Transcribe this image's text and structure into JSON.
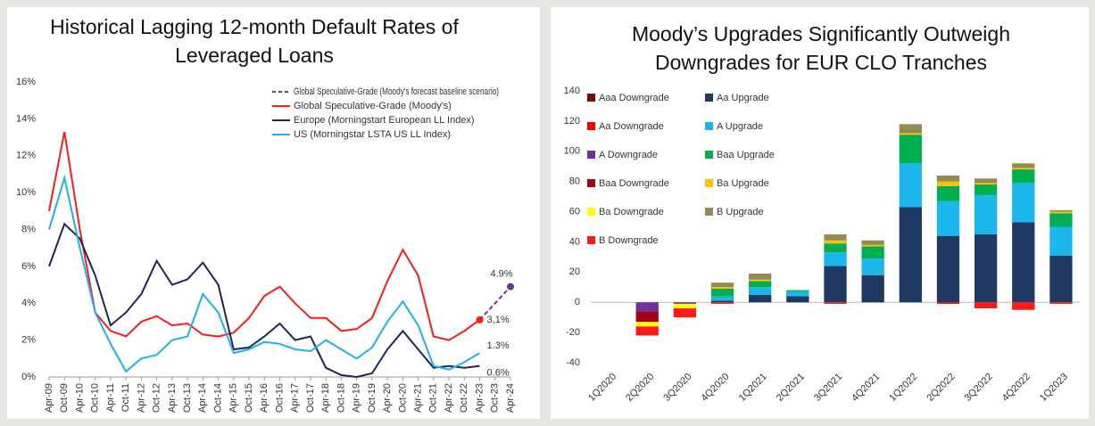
{
  "chart_data": [
    {
      "type": "line",
      "title": "Historical Lagging 12-month Default Rates of Leveraged Loans",
      "x": [
        "Apr-09",
        "Oct-09",
        "Apr-10",
        "Oct-10",
        "Apr-11",
        "Oct-11",
        "Apr-12",
        "Oct-12",
        "Apr-13",
        "Oct-13",
        "Apr-14",
        "Oct-14",
        "Apr-15",
        "Oct-15",
        "Apr-16",
        "Oct-16",
        "Apr-17",
        "Oct-17",
        "Apr-18",
        "Oct-18",
        "Apr-19",
        "Oct-19",
        "Apr-20",
        "Oct-20",
        "Apr-21",
        "Oct-21",
        "Apr-22",
        "Oct-22",
        "Apr-23",
        "Oct-23",
        "Apr-24"
      ],
      "ylim": [
        0,
        16
      ],
      "yticks": [
        {
          "value": 0,
          "label": "0%"
        },
        {
          "value": 2,
          "label": "2%"
        },
        {
          "value": 4,
          "label": "4%"
        },
        {
          "value": 6,
          "label": "6%"
        },
        {
          "value": 8,
          "label": "8%"
        },
        {
          "value": 10,
          "label": "10%"
        },
        {
          "value": 12,
          "label": "12%"
        },
        {
          "value": 14,
          "label": "14%"
        },
        {
          "value": 16,
          "label": "16%"
        }
      ],
      "grid": false,
      "legend": "upper right",
      "series": [
        {
          "name": "Global Speculative-Grade (Moody's forecast baseline scenario)",
          "color": "#7030a0",
          "dashed": true,
          "end_marker": true,
          "values": [
            null,
            null,
            null,
            null,
            null,
            null,
            null,
            null,
            null,
            null,
            null,
            null,
            null,
            null,
            null,
            null,
            null,
            null,
            null,
            null,
            null,
            null,
            null,
            null,
            null,
            null,
            null,
            null,
            3.1,
            4.0,
            4.9
          ],
          "value_labels": [
            null,
            null,
            null,
            null,
            null,
            null,
            null,
            null,
            null,
            null,
            null,
            null,
            null,
            null,
            null,
            null,
            null,
            null,
            null,
            null,
            null,
            null,
            null,
            null,
            null,
            null,
            null,
            null,
            null,
            null,
            "4.9%"
          ]
        },
        {
          "name": "Global Speculative-Grade (Moody's)",
          "color": "#ff1a1a",
          "dashed": false,
          "end_marker": true,
          "values": [
            9.0,
            13.3,
            8.0,
            3.5,
            2.5,
            2.2,
            3.0,
            3.3,
            2.8,
            2.9,
            2.3,
            2.2,
            2.4,
            3.2,
            4.4,
            4.9,
            4.0,
            3.2,
            3.2,
            2.5,
            2.6,
            3.2,
            5.2,
            6.9,
            5.5,
            2.2,
            2.0,
            2.5,
            3.1,
            null,
            null
          ],
          "value_labels": [
            null,
            null,
            null,
            null,
            null,
            null,
            null,
            null,
            null,
            null,
            null,
            null,
            null,
            null,
            null,
            null,
            null,
            null,
            null,
            null,
            null,
            null,
            null,
            null,
            null,
            null,
            null,
            null,
            "3,1%",
            null,
            null
          ]
        },
        {
          "name": "Europe (Morningstart European LL Index)",
          "color": "#1c2757",
          "dashed": false,
          "end_marker": false,
          "values": [
            6.0,
            8.3,
            7.5,
            5.5,
            2.8,
            3.5,
            4.5,
            6.3,
            5.0,
            5.3,
            6.2,
            5.0,
            1.5,
            1.6,
            2.2,
            2.9,
            2.0,
            2.2,
            0.5,
            0.1,
            0.0,
            0.2,
            1.5,
            2.5,
            1.5,
            0.5,
            0.6,
            0.5,
            0.6,
            null,
            null
          ],
          "value_labels": [
            null,
            null,
            null,
            null,
            null,
            null,
            null,
            null,
            null,
            null,
            null,
            null,
            null,
            null,
            null,
            null,
            null,
            null,
            null,
            null,
            null,
            null,
            null,
            null,
            null,
            null,
            null,
            null,
            "0.6%",
            null,
            null
          ]
        },
        {
          "name": "US (Morningstar LSTA US LL Index)",
          "color": "#1fb2e8",
          "dashed": false,
          "end_marker": false,
          "values": [
            8.0,
            10.8,
            7.0,
            3.5,
            1.8,
            0.3,
            1.0,
            1.2,
            2.0,
            2.2,
            4.5,
            3.5,
            1.3,
            1.5,
            1.9,
            1.8,
            1.5,
            1.4,
            2.0,
            1.5,
            1.0,
            1.6,
            3.0,
            4.1,
            2.8,
            0.6,
            0.4,
            0.8,
            1.3,
            null,
            null
          ],
          "value_labels": [
            null,
            null,
            null,
            null,
            null,
            null,
            null,
            null,
            null,
            null,
            null,
            null,
            null,
            null,
            null,
            null,
            null,
            null,
            null,
            null,
            null,
            null,
            null,
            null,
            null,
            null,
            null,
            null,
            "1.3%",
            null,
            null
          ]
        }
      ]
    },
    {
      "type": "bar",
      "stacked": true,
      "title": "Moody’s Upgrades Significantly Outweigh Downgrades for EUR CLO Tranches",
      "categories": [
        "1Q2020",
        "2Q2020",
        "3Q2020",
        "4Q2020",
        "1Q2021",
        "2Q2021",
        "3Q2021",
        "4Q2021",
        "1Q2022",
        "2Q2022",
        "3Q2022",
        "4Q2022",
        "1Q2023"
      ],
      "ylim": [
        -40,
        140
      ],
      "yticks": [
        -40,
        -20,
        0,
        20,
        40,
        60,
        80,
        100,
        120,
        140
      ],
      "grid": false,
      "legend": "upper left",
      "series": [
        {
          "name": "Aaa Downgrade",
          "color": "#7a0a0a",
          "values": [
            0,
            0,
            0,
            0,
            0,
            0,
            0,
            0,
            0,
            0,
            0,
            0,
            0
          ]
        },
        {
          "name": "Aa Upgrade",
          "color": "#203864",
          "values": [
            0,
            0,
            0,
            1,
            5,
            4,
            24,
            18,
            63,
            44,
            45,
            53,
            31
          ]
        },
        {
          "name": "Aa Downgrade",
          "color": "#ff0000",
          "values": [
            0,
            0,
            0,
            0,
            0,
            0,
            0,
            0,
            0,
            -1,
            0,
            0,
            0
          ]
        },
        {
          "name": "A Upgrade",
          "color": "#1ab6ec",
          "values": [
            0,
            0,
            0,
            3,
            5,
            3,
            9,
            11,
            29,
            23,
            26,
            26,
            19
          ]
        },
        {
          "name": "A Downgrade",
          "color": "#7030a0",
          "values": [
            0,
            -6,
            -1,
            0,
            0,
            0,
            0,
            0,
            0,
            0,
            0,
            0,
            0
          ]
        },
        {
          "name": "Baa Upgrade",
          "color": "#00b050",
          "values": [
            0,
            0,
            0,
            5,
            4,
            1,
            6,
            8,
            19,
            10,
            7,
            9,
            9
          ]
        },
        {
          "name": "Baa Downgrade",
          "color": "#a00018",
          "values": [
            0,
            -7,
            0,
            0,
            0,
            0,
            0,
            0,
            0,
            0,
            0,
            0,
            0
          ]
        },
        {
          "name": "Ba Upgrade",
          "color": "#ffc000",
          "values": [
            0,
            0,
            0,
            1,
            1,
            0,
            2,
            1,
            1,
            3,
            1,
            1,
            1
          ]
        },
        {
          "name": "Ba Downgrade",
          "color": "#ffff00",
          "values": [
            0,
            -3,
            -3,
            0,
            0,
            0,
            0,
            0,
            0,
            0,
            0,
            0,
            0
          ]
        },
        {
          "name": "B Upgrade",
          "color": "#948a54",
          "values": [
            0,
            0,
            0,
            3,
            4,
            0,
            4,
            3,
            6,
            4,
            3,
            3,
            1
          ]
        },
        {
          "name": "B Downgrade",
          "color": "#ff1a1a",
          "values": [
            0,
            -6,
            -6,
            -1,
            0,
            0,
            -1,
            0,
            0,
            0,
            -4,
            -5,
            -1
          ]
        }
      ]
    }
  ]
}
